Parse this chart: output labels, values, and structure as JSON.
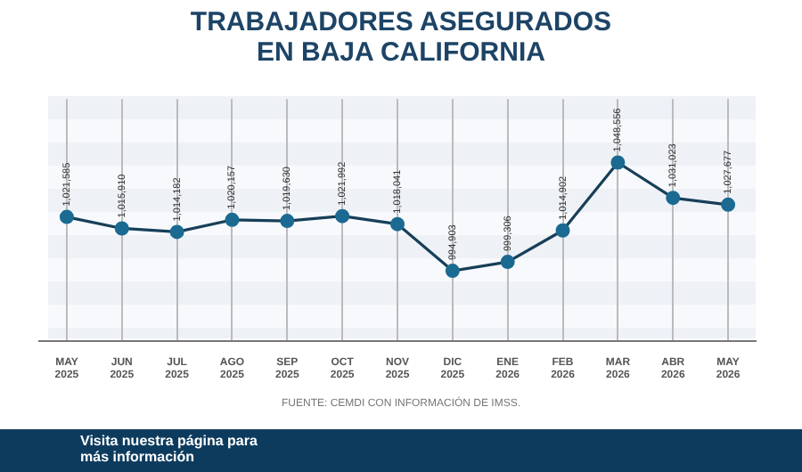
{
  "chart_data": {
    "type": "line",
    "title": "TRABAJADORES ASEGURADOS\nEN BAJA CALIFORNIA",
    "categories": [
      "MAY 2025",
      "JUN 2025",
      "JUL 2025",
      "AGO 2025",
      "SEP 2025",
      "OCT 2025",
      "NOV 2025",
      "DIC 2025",
      "ENE 2026",
      "FEB 2026",
      "MAR 2026",
      "ABR 2026",
      "MAY 2026"
    ],
    "series": [
      {
        "color": "#1b6a92",
        "values": [
          1021585,
          1015910,
          1014182,
          1020157,
          1019630,
          1021992,
          1018041,
          994903,
          999306,
          1014902,
          1048556,
          1031023,
          1027677
        ],
        "value_labels": [
          "1,021,585",
          "1,015,910",
          "1,014,182",
          "1,020,157",
          "1,019,630",
          "1,021,992",
          "1,018,041",
          "994,903",
          "999,306",
          "1,014,902",
          "1,048,556",
          "1,031,023",
          "1,027,677"
        ]
      }
    ],
    "marker": "circle",
    "grid": "x",
    "legend": false,
    "tick_labels": "x",
    "annotations": [
      "FUENTE: CEMDI CON INFORMACIÓN DE IMSS.",
      "Visita nuestra página para más información"
    ]
  }
}
